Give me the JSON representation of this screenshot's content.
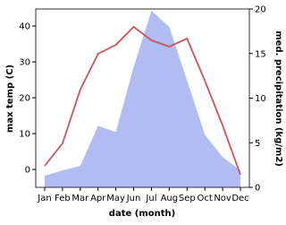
{
  "chart_data": {
    "type": "line-area",
    "x_label": "date (month)",
    "y_label": "max temp (C)",
    "y2_label": "med. precipitation (kg/m2)",
    "categories": [
      "Jan",
      "Feb",
      "Mar",
      "Apr",
      "May",
      "Jun",
      "Jul",
      "Aug",
      "Sep",
      "Oct",
      "Nov",
      "Dec"
    ],
    "ylim": [
      -5,
      44.75
    ],
    "yticks": [
      0,
      10,
      20,
      30,
      40
    ],
    "y2lim": [
      0,
      20
    ],
    "y2ticks": [
      0,
      5,
      10,
      15,
      20
    ],
    "series": [
      {
        "name": "max temp",
        "color": "#c9545a",
        "values": [
          1,
          7.25,
          22.25,
          32.25,
          34.75,
          39.75,
          36,
          34.25,
          36.5,
          24.75,
          12.25,
          -1.5
        ]
      },
      {
        "name": "med. precipitation",
        "color": "#b0bcf2",
        "axis": "y2",
        "values": [
          1.3,
          1.9,
          2.4,
          6.9,
          6.2,
          13.5,
          19.8,
          18,
          12,
          5.9,
          3.4,
          1.9
        ]
      }
    ]
  }
}
